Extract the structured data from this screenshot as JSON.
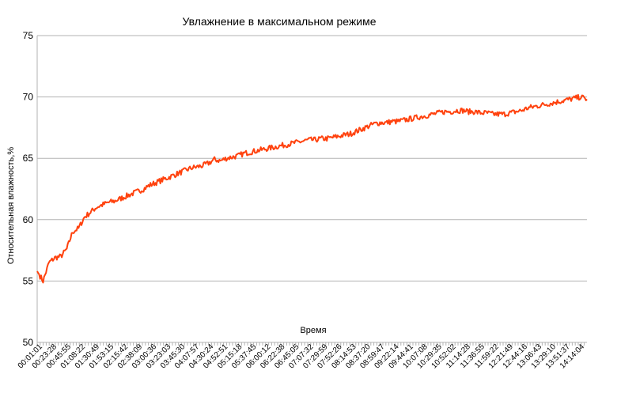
{
  "chart_data": {
    "type": "line",
    "title": "Увлажнение в максимальном режиме",
    "xlabel": "Время",
    "ylabel": "Относительная влажность,%",
    "ylim": [
      50,
      75
    ],
    "yticks": [
      50,
      55,
      60,
      65,
      70,
      75
    ],
    "grid": true,
    "legend": "none",
    "x_tick_labels": [
      "00:01:01",
      "00:23:28",
      "00:45:55",
      "01:08:22",
      "01:30:49",
      "01:53:15",
      "02:15:42",
      "02:38:09",
      "03:00:36",
      "03:23:03",
      "03:45:30",
      "04:07:57",
      "04:30:24",
      "04:52:51",
      "05:15:18",
      "05:37:45",
      "06:00:12",
      "06:22:38",
      "06:45:05",
      "07:07:32",
      "07:29:59",
      "07:52:26",
      "08:14:53",
      "08:37:20",
      "08:59:47",
      "09:22:14",
      "09:44:41",
      "10:07:08",
      "10:29:35",
      "10:52:02",
      "11:14:28",
      "11:36:55",
      "11:59:22",
      "12:21:49",
      "12:44:16",
      "13:06:43",
      "13:29:10",
      "13:51:37",
      "14:14:04"
    ],
    "series": [
      {
        "color": "#ff420e",
        "x_start": "00:01:01",
        "x_end": "14:24:00",
        "values": [
          55.8,
          55.0,
          56.5,
          56.9,
          57.0,
          57.6,
          59.0,
          59.3,
          60.2,
          60.6,
          61.0,
          61.2,
          61.4,
          61.5,
          61.7,
          61.9,
          62.1,
          62.3,
          62.5,
          62.8,
          63.0,
          63.2,
          63.4,
          63.6,
          63.8,
          64.0,
          64.2,
          64.3,
          64.4,
          64.6,
          64.9,
          64.8,
          65.0,
          65.1,
          65.2,
          65.4,
          65.5,
          65.6,
          65.7,
          65.8,
          65.9,
          66.0,
          66.1,
          66.2,
          66.3,
          66.4,
          66.5,
          66.5,
          66.6,
          66.6,
          66.7,
          66.8,
          66.9,
          67.0,
          67.2,
          67.4,
          67.6,
          67.8,
          67.9,
          67.9,
          68.0,
          68.0,
          68.1,
          68.2,
          68.3,
          68.4,
          68.5,
          68.6,
          68.7,
          68.8,
          68.8,
          68.9,
          68.9,
          68.8,
          68.8,
          68.7,
          68.7,
          68.6,
          68.6,
          68.6,
          68.7,
          68.8,
          68.9,
          69.1,
          69.2,
          69.3,
          69.4,
          69.5,
          69.6,
          69.7,
          69.8,
          69.9,
          70.0,
          69.8
        ]
      }
    ]
  }
}
